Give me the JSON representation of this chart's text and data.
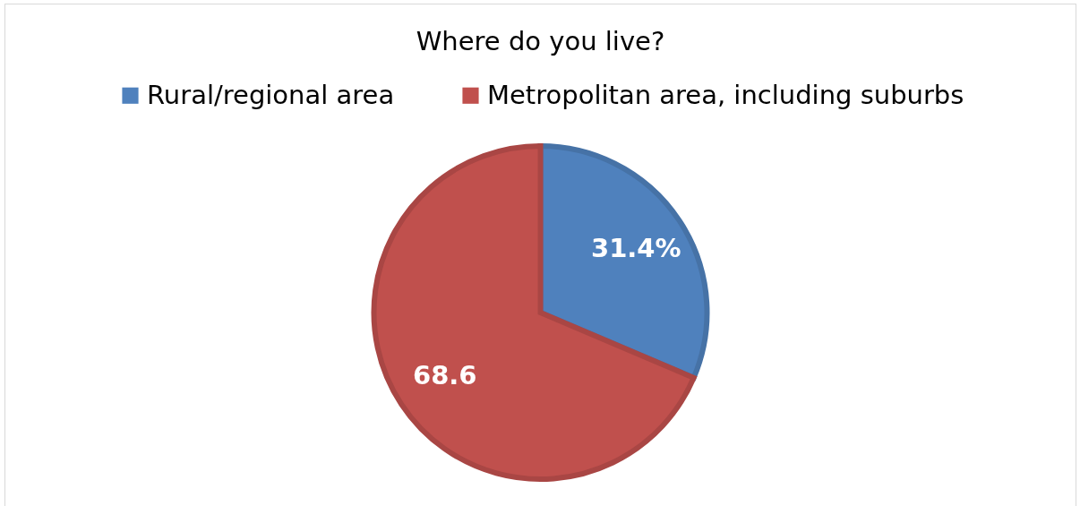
{
  "chart_data": {
    "type": "pie",
    "title": "Where do you live?",
    "categories": [
      "Rural/regional area",
      "Metropolitan area, including suburbs"
    ],
    "values": [
      31.4,
      68.6
    ],
    "colors": [
      "#4f81bd",
      "#c0504d"
    ],
    "value_labels": [
      "31.4%",
      "68.6"
    ],
    "legend": "top"
  }
}
